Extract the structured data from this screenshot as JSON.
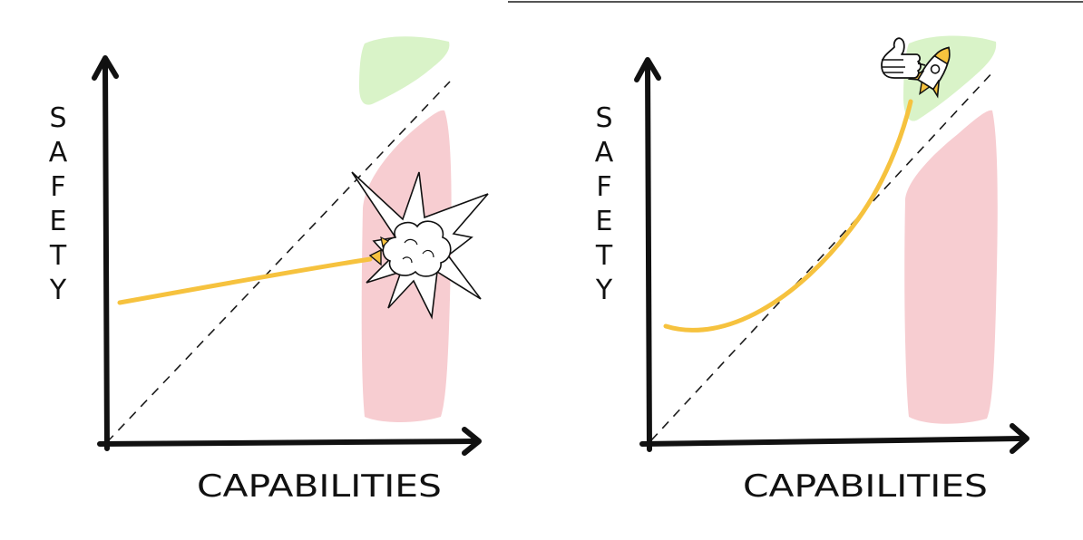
{
  "panels": [
    {
      "x_axis_label": "CAPABILITIES",
      "y_axis_label": [
        "S",
        "A",
        "F",
        "E",
        "T",
        "Y"
      ],
      "outcome": "explosion"
    },
    {
      "x_axis_label": "CAPABILITIES",
      "y_axis_label": [
        "S",
        "A",
        "F",
        "E",
        "T",
        "Y"
      ],
      "outcome": "thumbs-up"
    }
  ],
  "colors": {
    "safe_zone": "#d9f3c8",
    "danger_zone": "#f7cdd1",
    "trajectory": "#f6c23e",
    "axis": "#111111"
  }
}
